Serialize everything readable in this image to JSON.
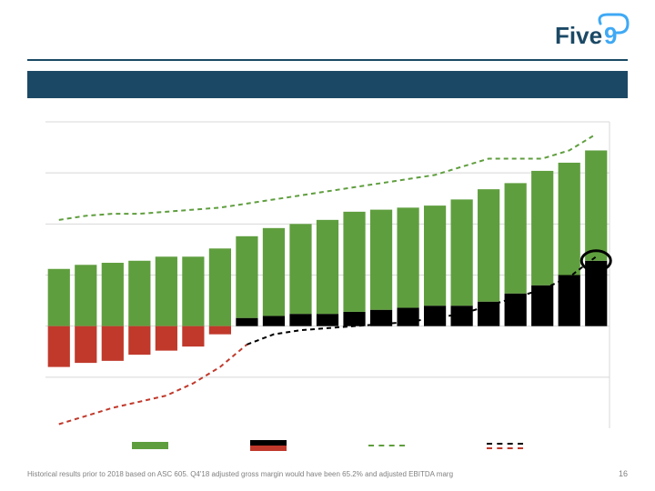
{
  "brand": {
    "name": "Five9",
    "text_color": "#1b4965",
    "cloud_color": "#3fa9f5"
  },
  "layout": {
    "rule_color": "#1b4965",
    "band_color": "#1b4965"
  },
  "footnote": "Historical results prior to 2018 based on ASC 605. Q4'18 adjusted gross margin would have been 65.2% and adjusted EBITDA marg",
  "page_number": "16",
  "chart": {
    "type": "stacked-bar-with-lines",
    "n": 21,
    "baseline": 0,
    "ylim": [
      -50,
      100
    ],
    "bar_gap_ratio": 0.18,
    "colors": {
      "green_bar": "#5f9e3e",
      "black_bar": "#000000",
      "red_bar": "#c0392b",
      "green_line": "#5f9e3e",
      "red_to_black_line_red": "#c0392b",
      "red_to_black_line_black": "#000000",
      "gridline": "#d8d8d8",
      "background": "#ffffff"
    },
    "green_values": [
      28,
      30,
      31,
      32,
      34,
      34,
      38,
      44,
      48,
      50,
      52,
      56,
      57,
      58,
      59,
      62,
      67,
      70,
      76,
      80,
      86
    ],
    "secondary_values": [
      -20,
      -18,
      -17,
      -14,
      -12,
      -10,
      -4,
      4,
      5,
      6,
      6,
      7,
      8,
      9,
      10,
      10,
      12,
      16,
      20,
      25,
      32
    ],
    "upper_line": [
      52,
      54,
      55,
      55,
      56,
      57,
      58,
      60,
      62,
      64,
      66,
      68,
      70,
      72,
      74,
      78,
      82,
      82,
      82,
      86,
      94
    ],
    "lower_line": [
      -48,
      -44,
      -40,
      -37,
      -34,
      -28,
      -20,
      -9,
      -4,
      -2,
      -1,
      0,
      1,
      2,
      4,
      6,
      10,
      14,
      18,
      24,
      34
    ],
    "line_switch_index": 7,
    "gridlines_y": [
      -25,
      0,
      25,
      50,
      75,
      100
    ],
    "annotation_circle": {
      "bar_index": 20,
      "y": 32
    }
  },
  "legend": {
    "items": [
      {
        "kind": "swatch",
        "color": "#5f9e3e"
      },
      {
        "kind": "stacked",
        "top": "#000000",
        "bottom": "#c0392b"
      },
      {
        "kind": "dash",
        "color": "#5f9e3e"
      },
      {
        "kind": "dash2",
        "top": "#000000",
        "bottom": "#c0392b"
      }
    ]
  }
}
